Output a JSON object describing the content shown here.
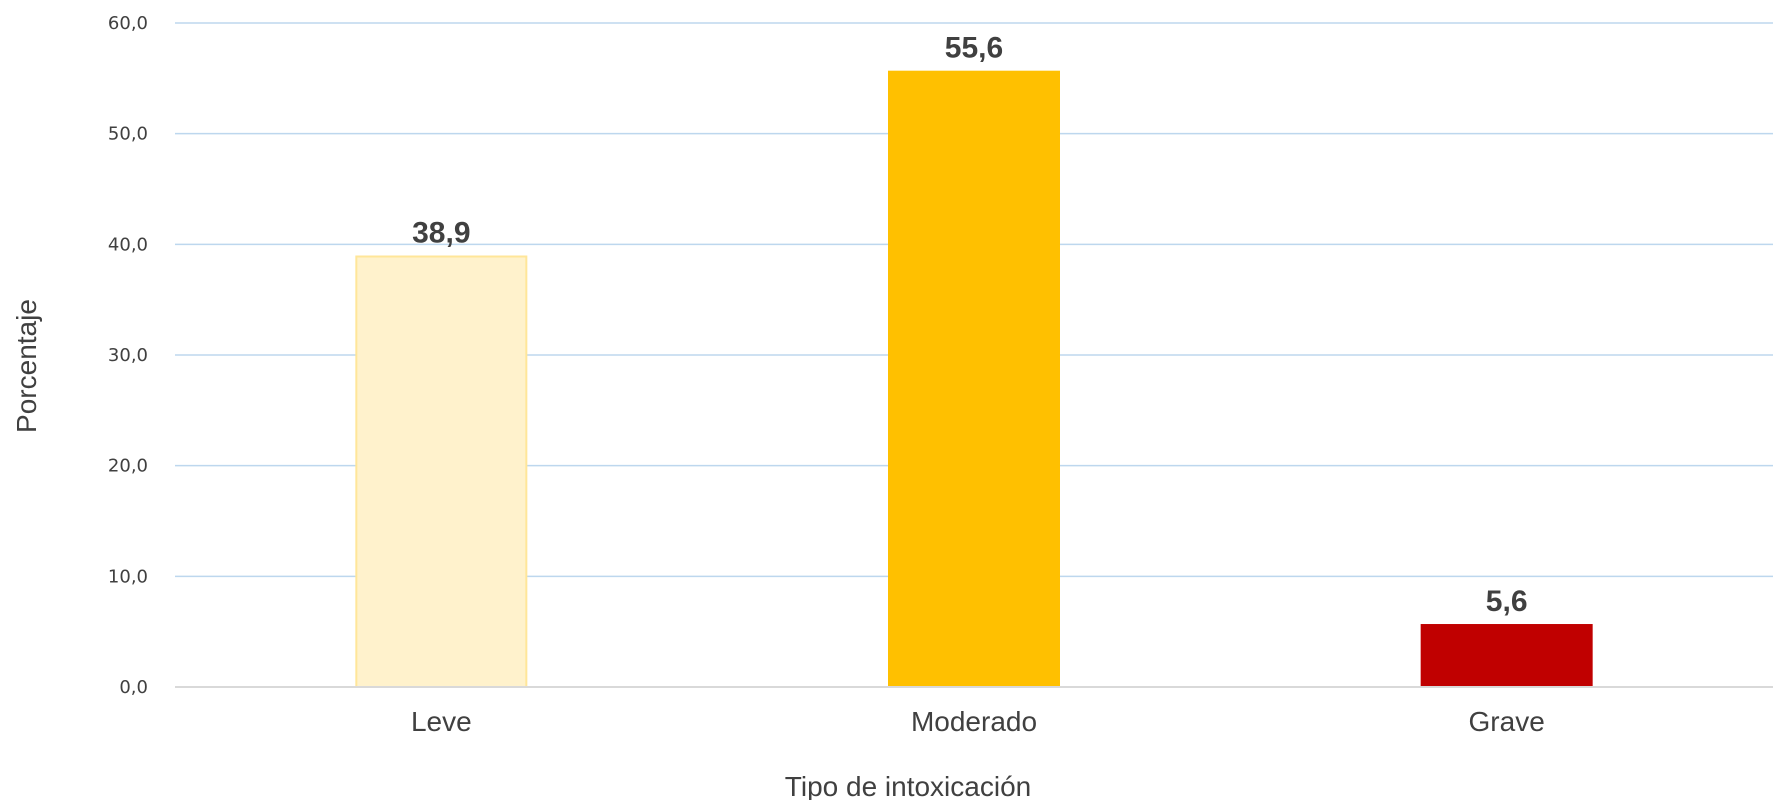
{
  "chart_data": {
    "type": "bar",
    "title": "",
    "xlabel": "Tipo de intoxicación",
    "ylabel": "Porcentaje",
    "categories": [
      "Leve",
      "Moderado",
      "Grave"
    ],
    "values": [
      38.9,
      55.6,
      5.6
    ],
    "value_labels": [
      "38,9",
      "55,6",
      "5,6"
    ],
    "bar_colors": [
      "#FFF2CC",
      "#FFC000",
      "#C00000"
    ],
    "bar_edge_colors": [
      "#FFE699",
      "#FFC000",
      "#C00000"
    ],
    "ylim": [
      0,
      60
    ],
    "yticks": [
      0,
      10,
      20,
      30,
      40,
      50,
      60
    ],
    "ytick_labels": [
      "0,0",
      "10,0",
      "20,0",
      "30,0",
      "40,0",
      "50,0",
      "60,0"
    ],
    "grid": true,
    "grid_color": "#BDD7EE",
    "axis_color": "#D9D9D9",
    "legend": "none"
  }
}
